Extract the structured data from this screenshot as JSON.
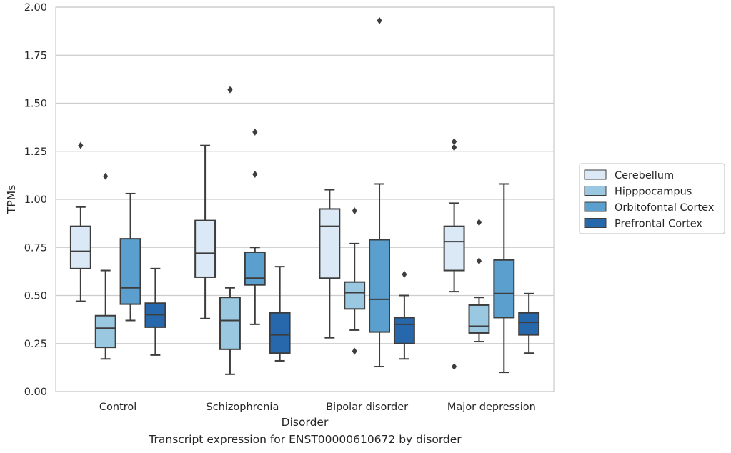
{
  "caption": "Transcript expression for ENST00000610672 by disorder",
  "chart_data": {
    "type": "box",
    "xlabel": "Disorder",
    "ylabel": "TPMs",
    "ylim": [
      0,
      2.0
    ],
    "yticks": [
      "0.00",
      "0.25",
      "0.50",
      "0.75",
      "1.00",
      "1.25",
      "1.50",
      "1.75",
      "2.00"
    ],
    "grid": "horizontal",
    "legend_position": "right",
    "categories": [
      "Control",
      "Schizophrenia",
      "Bipolar disorder",
      "Major depression"
    ],
    "series": [
      {
        "name": "Cerebellum",
        "color": "#dbe9f6",
        "boxes": [
          {
            "whislo": 0.47,
            "q1": 0.64,
            "med": 0.73,
            "q3": 0.86,
            "whishi": 0.96,
            "fliers": [
              1.28
            ]
          },
          {
            "whislo": 0.38,
            "q1": 0.595,
            "med": 0.72,
            "q3": 0.89,
            "whishi": 1.28,
            "fliers": []
          },
          {
            "whislo": 0.28,
            "q1": 0.59,
            "med": 0.86,
            "q3": 0.95,
            "whishi": 1.05,
            "fliers": []
          },
          {
            "whislo": 0.52,
            "q1": 0.63,
            "med": 0.78,
            "q3": 0.86,
            "whishi": 0.98,
            "fliers": [
              1.27,
              1.3,
              0.13
            ]
          }
        ]
      },
      {
        "name": "Hipppocampus",
        "color": "#9ac8e0",
        "boxes": [
          {
            "whislo": 0.17,
            "q1": 0.23,
            "med": 0.33,
            "q3": 0.395,
            "whishi": 0.63,
            "fliers": [
              1.12
            ]
          },
          {
            "whislo": 0.09,
            "q1": 0.22,
            "med": 0.37,
            "q3": 0.49,
            "whishi": 0.54,
            "fliers": [
              1.57
            ]
          },
          {
            "whislo": 0.32,
            "q1": 0.43,
            "med": 0.515,
            "q3": 0.57,
            "whishi": 0.77,
            "fliers": [
              0.94,
              0.21
            ]
          },
          {
            "whislo": 0.26,
            "q1": 0.305,
            "med": 0.34,
            "q3": 0.45,
            "whishi": 0.49,
            "fliers": [
              0.88,
              0.68
            ]
          }
        ]
      },
      {
        "name": "Orbitofontal Cortex",
        "color": "#5a9fcd",
        "boxes": [
          {
            "whislo": 0.37,
            "q1": 0.455,
            "med": 0.54,
            "q3": 0.795,
            "whishi": 1.03,
            "fliers": []
          },
          {
            "whislo": 0.35,
            "q1": 0.555,
            "med": 0.59,
            "q3": 0.725,
            "whishi": 0.75,
            "fliers": [
              1.13,
              1.35
            ]
          },
          {
            "whislo": 0.13,
            "q1": 0.31,
            "med": 0.48,
            "q3": 0.79,
            "whishi": 1.08,
            "fliers": [
              1.93
            ]
          },
          {
            "whislo": 0.1,
            "q1": 0.385,
            "med": 0.51,
            "q3": 0.685,
            "whishi": 1.08,
            "fliers": []
          }
        ]
      },
      {
        "name": "Prefrontal Cortex",
        "color": "#2767ac",
        "boxes": [
          {
            "whislo": 0.19,
            "q1": 0.335,
            "med": 0.4,
            "q3": 0.46,
            "whishi": 0.64,
            "fliers": []
          },
          {
            "whislo": 0.16,
            "q1": 0.2,
            "med": 0.295,
            "q3": 0.41,
            "whishi": 0.65,
            "fliers": []
          },
          {
            "whislo": 0.17,
            "q1": 0.25,
            "med": 0.35,
            "q3": 0.385,
            "whishi": 0.5,
            "fliers": [
              0.61
            ]
          },
          {
            "whislo": 0.2,
            "q1": 0.295,
            "med": 0.36,
            "q3": 0.41,
            "whishi": 0.51,
            "fliers": []
          }
        ]
      }
    ]
  }
}
